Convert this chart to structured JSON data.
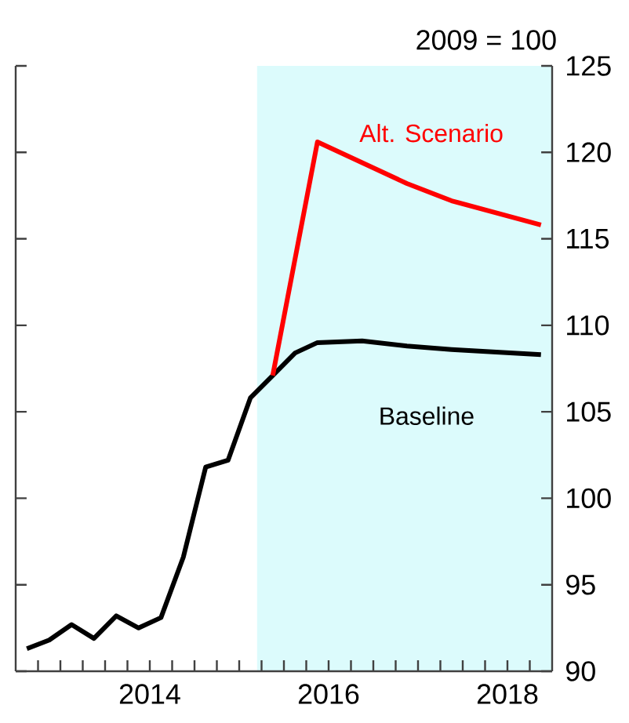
{
  "chart_data": {
    "type": "line",
    "ylabel": "2009 = 100",
    "ylim": [
      90,
      125
    ],
    "yticks": [
      90,
      95,
      100,
      105,
      110,
      115,
      120,
      125
    ],
    "xlim": [
      2013,
      2019
    ],
    "xticks": [
      {
        "value": 2013.25,
        "label": null
      },
      {
        "value": 2013.5,
        "label": null
      },
      {
        "value": 2013.75,
        "label": null
      },
      {
        "value": 2014,
        "label": null
      },
      {
        "value": 2014.25,
        "label": null
      },
      {
        "value": 2014.5,
        "label": "2014"
      },
      {
        "value": 2014.75,
        "label": null
      },
      {
        "value": 2015,
        "label": null
      },
      {
        "value": 2015.25,
        "label": null
      },
      {
        "value": 2015.5,
        "label": null
      },
      {
        "value": 2015.75,
        "label": null
      },
      {
        "value": 2016,
        "label": null
      },
      {
        "value": 2016.25,
        "label": null
      },
      {
        "value": 2016.5,
        "label": "2016"
      },
      {
        "value": 2016.75,
        "label": null
      },
      {
        "value": 2017,
        "label": null
      },
      {
        "value": 2017.25,
        "label": null
      },
      {
        "value": 2017.5,
        "label": null
      },
      {
        "value": 2017.75,
        "label": null
      },
      {
        "value": 2018,
        "label": null
      },
      {
        "value": 2018.25,
        "label": null
      },
      {
        "value": 2018.5,
        "label": "2018"
      },
      {
        "value": 2018.75,
        "label": null
      }
    ],
    "grid": false,
    "marker": "none",
    "line_style": "solid",
    "bands": [
      {
        "axis": "x",
        "from": 2015.7,
        "to": 2019,
        "color": "#dcfbfc"
      }
    ],
    "series": [
      {
        "name": "Baseline",
        "color": "#000000",
        "x": [
          2013.125,
          2013.375,
          2013.625,
          2013.875,
          2014.125,
          2014.375,
          2014.625,
          2014.875,
          2015.125,
          2015.375,
          2015.625,
          2015.875,
          2016.125,
          2016.375,
          2016.875,
          2017.375,
          2017.875,
          2018.875
        ],
        "values": [
          91.3,
          91.8,
          92.7,
          91.9,
          93.2,
          92.5,
          93.1,
          96.6,
          101.8,
          102.2,
          105.8,
          107.1,
          108.4,
          109.0,
          109.1,
          108.8,
          108.6,
          108.3
        ]
      },
      {
        "name": "Alt. Scenario",
        "color": "#ff0000",
        "x": [
          2015.875,
          2016.375,
          2017.375,
          2017.875,
          2018.875
        ],
        "values": [
          107.1,
          120.6,
          118.2,
          117.2,
          115.8
        ]
      }
    ]
  }
}
